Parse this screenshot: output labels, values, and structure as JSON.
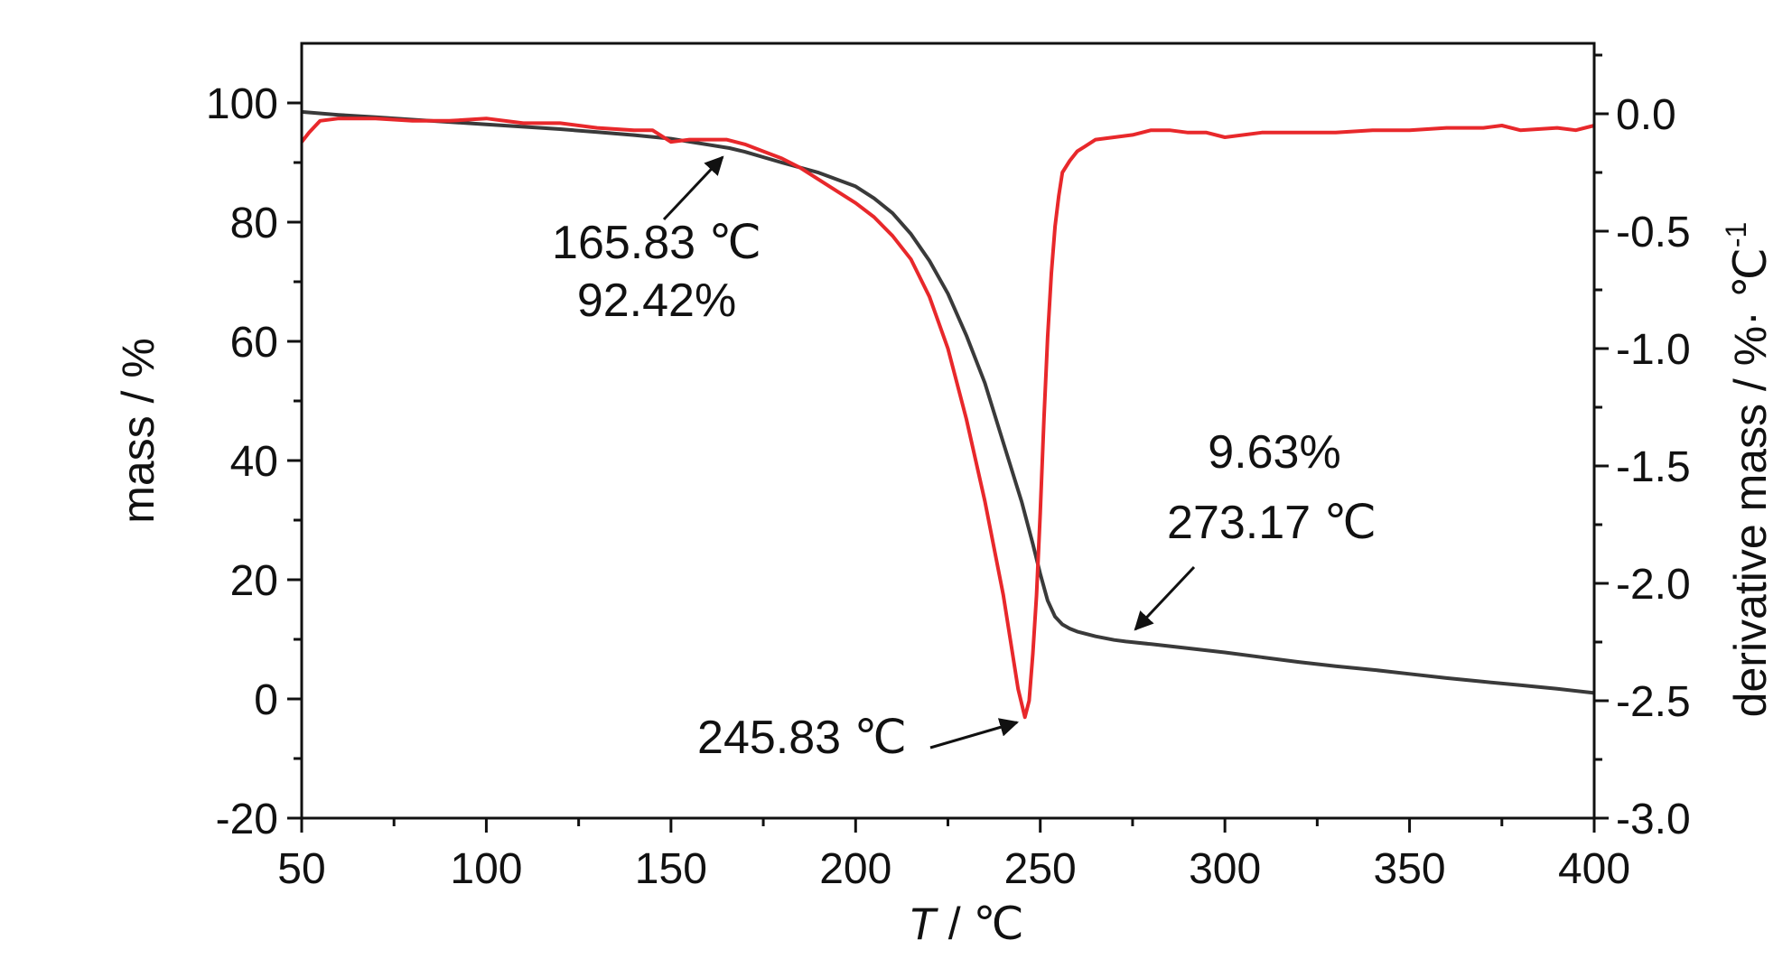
{
  "chart_data": {
    "type": "line",
    "xlabel_var": "T",
    "xlabel_unit": " / ℃",
    "ylabel": "mass / %",
    "y2label": "derivative mass / %· ℃",
    "y2label_sup": "-1",
    "xlim": [
      50,
      400
    ],
    "ylim": [
      -20,
      110
    ],
    "y2lim": [
      -3.0,
      0.3
    ],
    "xticks": [
      "50",
      "100",
      "150",
      "200",
      "250",
      "300",
      "350",
      "400"
    ],
    "yticks": [
      "-20",
      "0",
      "20",
      "40",
      "60",
      "80",
      "100"
    ],
    "y2ticks": [
      "-3.0",
      "-2.5",
      "-2.0",
      "-1.5",
      "-1.0",
      "-0.5",
      "0.0"
    ],
    "grid": false,
    "colors": {
      "mass": "#3a3a3a",
      "derivative": "#e8282b"
    },
    "series": [
      {
        "axis": "left",
        "x": [
          50,
          60,
          70,
          80,
          90,
          100,
          110,
          120,
          130,
          140,
          150,
          160,
          165.83,
          170,
          180,
          190,
          200,
          205,
          210,
          215,
          220,
          225,
          230,
          235,
          240,
          245,
          248,
          250,
          252,
          254,
          256,
          258,
          260,
          265,
          270,
          273.17,
          280,
          290,
          300,
          310,
          320,
          330,
          340,
          350,
          360,
          370,
          380,
          390,
          400
        ],
        "y": [
          98.5,
          98.0,
          97.6,
          97.2,
          96.8,
          96.4,
          96.0,
          95.6,
          95.1,
          94.6,
          94.0,
          93.0,
          92.42,
          91.8,
          90.0,
          88.3,
          86.0,
          84.0,
          81.5,
          78.0,
          73.5,
          68.0,
          61.0,
          53.0,
          43.0,
          33.0,
          26.0,
          21.0,
          16.5,
          13.8,
          12.5,
          11.8,
          11.3,
          10.5,
          9.9,
          9.63,
          9.2,
          8.5,
          7.8,
          7.0,
          6.2,
          5.5,
          4.9,
          4.2,
          3.5,
          2.9,
          2.3,
          1.7,
          1.0
        ]
      },
      {
        "axis": "right",
        "x": [
          50,
          52,
          55,
          60,
          70,
          80,
          90,
          100,
          110,
          120,
          130,
          140,
          145,
          150,
          155,
          160,
          165,
          170,
          175,
          180,
          185,
          190,
          195,
          200,
          205,
          210,
          215,
          220,
          225,
          230,
          235,
          240,
          242,
          244,
          245.83,
          247,
          248,
          249,
          250,
          251,
          252,
          253,
          254,
          255,
          256,
          258,
          260,
          262,
          265,
          270,
          275,
          280,
          285,
          290,
          295,
          300,
          310,
          320,
          330,
          340,
          350,
          360,
          370,
          375,
          380,
          390,
          395,
          400
        ],
        "y": [
          -0.12,
          -0.08,
          -0.03,
          -0.02,
          -0.02,
          -0.03,
          -0.03,
          -0.02,
          -0.04,
          -0.04,
          -0.06,
          -0.07,
          -0.07,
          -0.12,
          -0.11,
          -0.11,
          -0.11,
          -0.13,
          -0.16,
          -0.19,
          -0.23,
          -0.28,
          -0.33,
          -0.38,
          -0.44,
          -0.52,
          -0.62,
          -0.78,
          -1.0,
          -1.3,
          -1.65,
          -2.05,
          -2.25,
          -2.45,
          -2.57,
          -2.5,
          -2.3,
          -2.05,
          -1.7,
          -1.3,
          -0.95,
          -0.68,
          -0.48,
          -0.35,
          -0.25,
          -0.2,
          -0.16,
          -0.14,
          -0.11,
          -0.1,
          -0.09,
          -0.07,
          -0.07,
          -0.08,
          -0.08,
          -0.1,
          -0.08,
          -0.08,
          -0.08,
          -0.07,
          -0.07,
          -0.06,
          -0.06,
          -0.05,
          -0.07,
          -0.06,
          -0.07,
          -0.05
        ]
      }
    ],
    "annotations": [
      {
        "id": "onset",
        "line1": "165.83 ℃",
        "line2": "92.42%"
      },
      {
        "id": "peak",
        "line1": "245.83 ℃"
      },
      {
        "id": "end",
        "line1": "9.63%",
        "line2": "273.17 ℃"
      }
    ]
  }
}
